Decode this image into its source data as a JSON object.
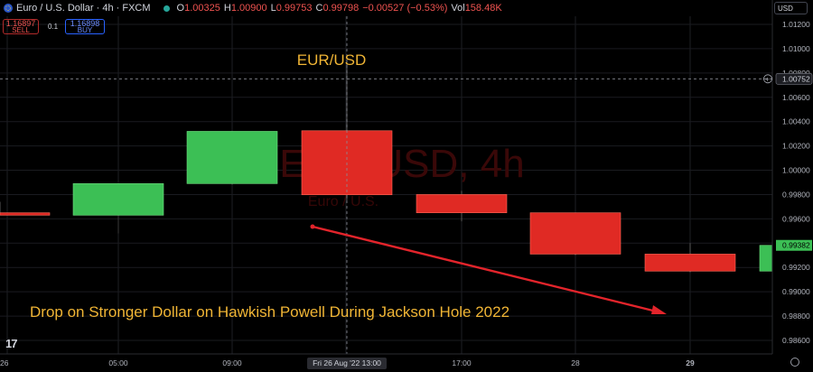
{
  "header": {
    "symbol": "Euro / U.S. Dollar · 4h · FXCM",
    "o_label": "O",
    "o_value": "1.00325",
    "h_label": "H",
    "h_value": "1.00900",
    "l_label": "L",
    "l_value": "0.99753",
    "c_label": "C",
    "c_value": "0.99798",
    "change": "−0.00527 (−0.53%)",
    "vol_label": "Vol",
    "vol_value": "158.48K",
    "up_color": "#26a69a",
    "down_color": "#ef5350"
  },
  "trade": {
    "sell_price": "1.16897",
    "sell_label": "SELL",
    "spread": "0.1",
    "buy_price": "1.16898",
    "buy_label": "BUY"
  },
  "currency_selector": "USD",
  "watermark": {
    "line1": "EUR/USD, 4h",
    "line2": "Euro / U.S."
  },
  "chart_data": {
    "type": "candlestick",
    "title": "EUR/USD",
    "annotation": "Drop on Stronger Dollar on Hawkish Powell During Jackson Hole 2022",
    "annotation_color": "#f0b535",
    "bull_color": "#3cbf55",
    "bear_color": "#e02a24",
    "arrow_color": "#e3242b",
    "y_ticks": [
      "1.01200",
      "1.01000",
      "1.00800",
      "1.00600",
      "1.00400",
      "1.00200",
      "1.00000",
      "0.99800",
      "0.99600",
      "0.99400",
      "0.99200",
      "0.99000",
      "0.98800",
      "0.98600"
    ],
    "ylim": [
      0.9852,
      1.0133
    ],
    "x_ticks": [
      "26",
      "05:00",
      "09:00",
      "17:00",
      "28",
      "29"
    ],
    "crosshair_time": "Fri 26 Aug '22   13:00",
    "crosshair_price": "1.00752",
    "last_price": "0.99382",
    "candles": [
      {
        "o": 0.9965,
        "h": 0.9974,
        "l": 0.9963,
        "c": 0.9963
      },
      {
        "o": 0.9963,
        "h": 0.9988,
        "l": 0.9948,
        "c": 0.9989
      },
      {
        "o": 0.9989,
        "h": 1.0032,
        "l": 0.9988,
        "c": 1.0032
      },
      {
        "o": 1.00325,
        "h": 1.009,
        "l": 0.99753,
        "c": 0.99798
      },
      {
        "o": 0.998,
        "h": 0.9983,
        "l": 0.9958,
        "c": 0.9965
      },
      {
        "o": 0.9965,
        "h": 0.9965,
        "l": 0.993,
        "c": 0.9931
      },
      {
        "o": 0.9931,
        "h": 0.994,
        "l": 0.9916,
        "c": 0.9917
      },
      {
        "o": 0.9917,
        "h": 0.994,
        "l": 0.9915,
        "c": 0.99382
      }
    ]
  }
}
